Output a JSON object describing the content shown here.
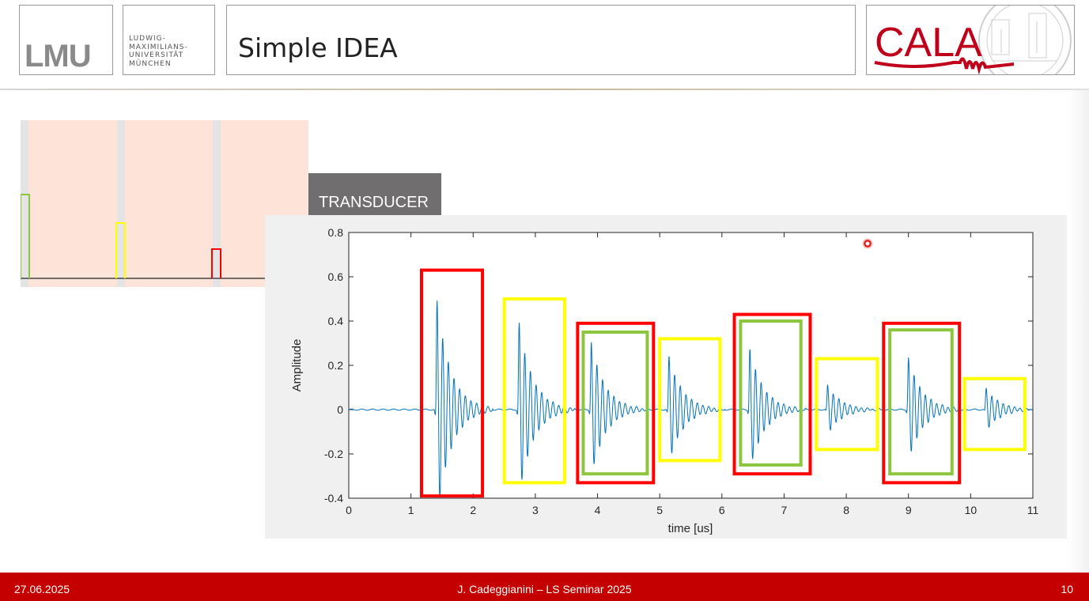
{
  "header": {
    "lmu_logo_text": "LMU",
    "university_name_lines": [
      "LUDWIG-",
      "MAXIMILIANS-",
      "UNIVERSITÄT",
      "MÜNCHEN"
    ],
    "slide_title": "Simple IDEA",
    "cala_logo_text": "CALA"
  },
  "transducer_label": "TRANSDUCER",
  "pulse_colors": [
    "#8cc63f",
    "#ffff00",
    "#ff0000"
  ],
  "chart_data": {
    "type": "line",
    "xlabel": "time [us]",
    "ylabel": "Amplitude",
    "xlim": [
      0,
      11
    ],
    "ylim": [
      -0.4,
      0.8
    ],
    "xticks": [
      0,
      1,
      2,
      3,
      4,
      5,
      6,
      7,
      8,
      9,
      10,
      11
    ],
    "yticks": [
      -0.4,
      -0.2,
      0,
      0.2,
      0.4,
      0.6,
      0.8
    ],
    "ytick_labels": [
      "-0.4",
      "-0.2",
      "0",
      "0.2",
      "0.4",
      "0.6",
      "0.8"
    ],
    "series_color": "#0072bd",
    "echoes": [
      {
        "t": 1.42,
        "peak": 0.61,
        "trough": -0.37
      },
      {
        "t": 2.74,
        "peak": 0.49,
        "trough": -0.29
      },
      {
        "t": 3.9,
        "peak": 0.33,
        "trough": -0.28
      },
      {
        "t": 5.15,
        "peak": 0.29,
        "trough": -0.19
      },
      {
        "t": 6.45,
        "peak": 0.36,
        "trough": -0.19
      },
      {
        "t": 7.7,
        "peak": 0.16,
        "trough": -0.06
      },
      {
        "t": 9.0,
        "peak": 0.26,
        "trough": -0.21
      },
      {
        "t": 10.25,
        "peak": 0.09,
        "trough": -0.1
      }
    ],
    "highlight_boxes": [
      {
        "color": "#ff0000",
        "x": [
          1.17,
          2.15
        ],
        "y": [
          -0.39,
          0.63
        ]
      },
      {
        "color": "#ffff00",
        "x": [
          2.5,
          3.47
        ],
        "y": [
          -0.33,
          0.5
        ]
      },
      {
        "color": "#ff0000",
        "x": [
          3.68,
          4.9
        ],
        "y": [
          -0.33,
          0.39
        ]
      },
      {
        "color": "#8cc63f",
        "x": [
          3.77,
          4.8
        ],
        "y": [
          -0.29,
          0.35
        ]
      },
      {
        "color": "#ffff00",
        "x": [
          5.0,
          5.97
        ],
        "y": [
          -0.23,
          0.32
        ]
      },
      {
        "color": "#ff0000",
        "x": [
          6.2,
          7.42
        ],
        "y": [
          -0.29,
          0.43
        ]
      },
      {
        "color": "#8cc63f",
        "x": [
          6.3,
          7.27
        ],
        "y": [
          -0.25,
          0.4
        ]
      },
      {
        "color": "#ffff00",
        "x": [
          7.52,
          8.5
        ],
        "y": [
          -0.18,
          0.23
        ]
      },
      {
        "color": "#ff0000",
        "x": [
          8.6,
          9.82
        ],
        "y": [
          -0.33,
          0.39
        ]
      },
      {
        "color": "#8cc63f",
        "x": [
          8.7,
          9.7
        ],
        "y": [
          -0.29,
          0.36
        ]
      },
      {
        "color": "#ffff00",
        "x": [
          9.9,
          10.87
        ],
        "y": [
          -0.18,
          0.14
        ]
      }
    ]
  },
  "footer": {
    "date": "27.06.2025",
    "center": "J. Cadeggianini – LS Seminar 2025",
    "page": "10"
  }
}
